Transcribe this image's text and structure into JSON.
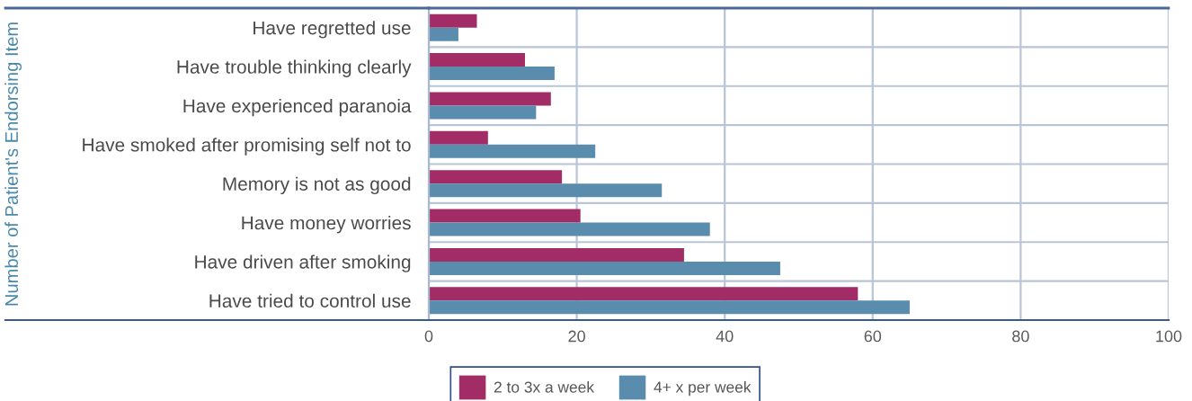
{
  "chart_data": {
    "type": "bar",
    "orientation": "horizontal",
    "ylabel": "Number of Patient's Endorsing Item",
    "categories": [
      "Have regretted use",
      "Have trouble thinking clearly",
      "Have experienced paranoia",
      "Have smoked after promising self not to",
      "Memory is not as good",
      "Have money worries",
      "Have driven after smoking",
      "Have tried to control use"
    ],
    "series": [
      {
        "name": "2 to 3x a week",
        "color": "#a22d66",
        "values": [
          6.5,
          13,
          16.5,
          8,
          18,
          20.5,
          34.5,
          58
        ]
      },
      {
        "name": "4+ x per week",
        "color": "#5a8cad",
        "values": [
          4,
          17,
          14.5,
          22.5,
          31.5,
          38,
          47.5,
          65
        ]
      }
    ],
    "xlim": [
      0,
      100
    ],
    "xticks": [
      0,
      20,
      40,
      60,
      80,
      100
    ],
    "grid": true,
    "legend": "bottom"
  }
}
